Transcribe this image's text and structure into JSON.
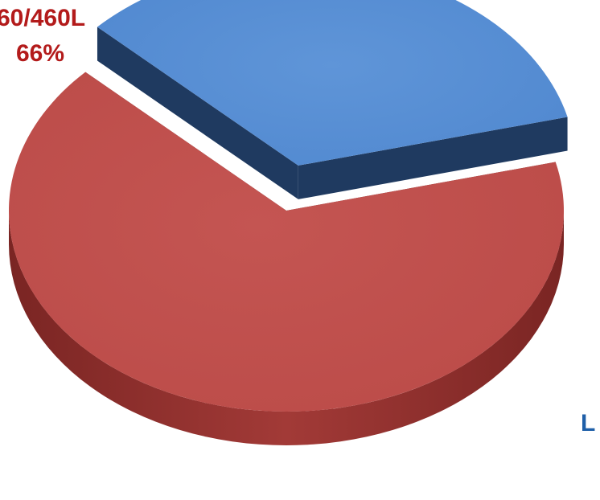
{
  "chart_data": {
    "type": "pie",
    "style": "3d-exploded",
    "slices": [
      {
        "value": 66,
        "label_lines": [
          "60/460L",
          "66%"
        ],
        "color_top": "#c0504d",
        "color_side": "#8c2f2c",
        "color_cut": "#6b2a2a"
      },
      {
        "value": 34,
        "label_lines": [
          "L"
        ],
        "color_top": "#558ed5",
        "color_side": "#2c4a78",
        "color_cut": "#1f3a60"
      }
    ]
  }
}
